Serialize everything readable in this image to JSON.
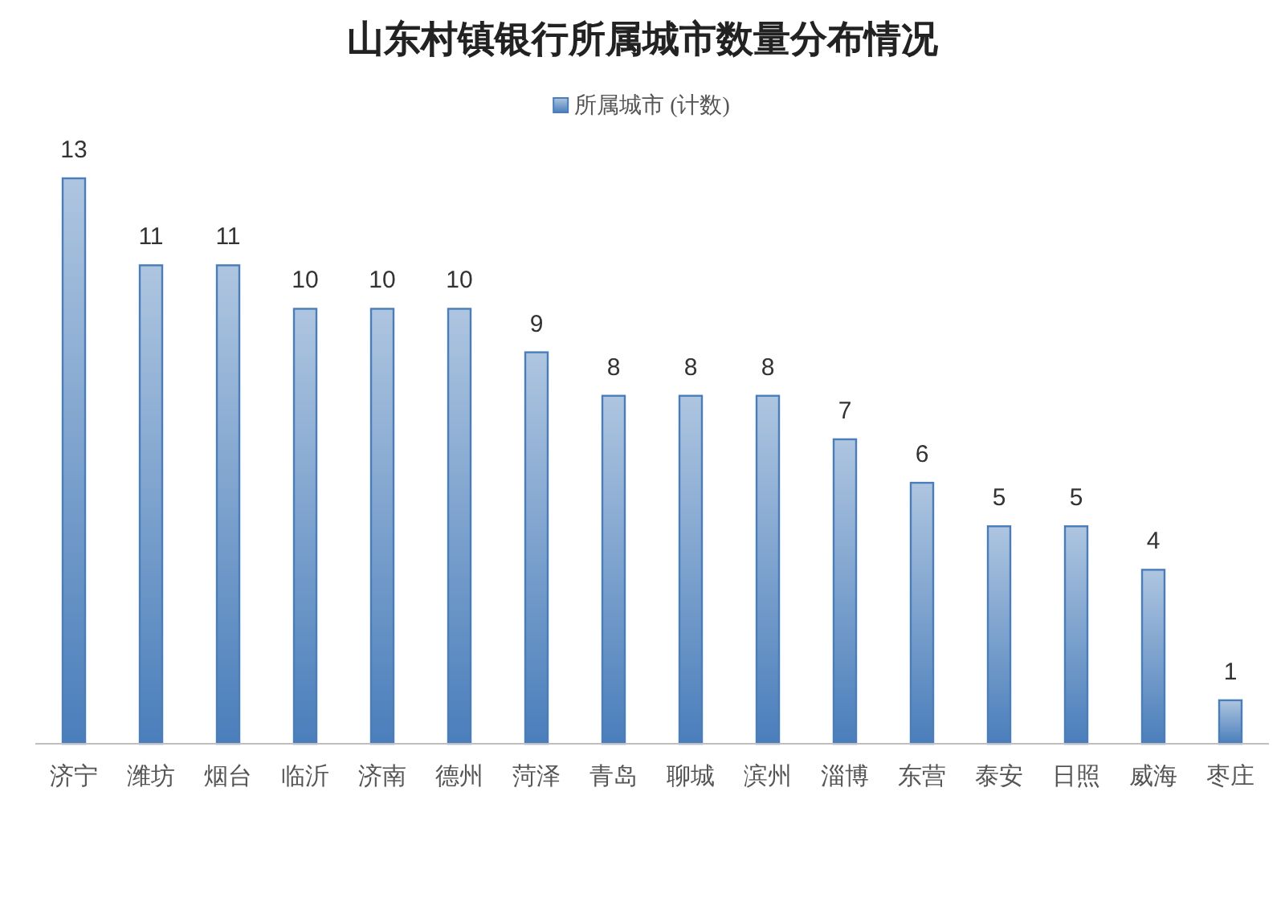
{
  "chart_data": {
    "type": "bar",
    "title": "山东村镇银行所属城市数量分布情况",
    "categories": [
      "济宁",
      "潍坊",
      "烟台",
      "临沂",
      "济南",
      "德州",
      "菏泽",
      "青岛",
      "聊城",
      "滨州",
      "淄博",
      "东营",
      "泰安",
      "日照",
      "威海",
      "枣庄"
    ],
    "series": [
      {
        "name": "所属城市 (计数)",
        "color": "#4a7ebb",
        "values": [
          13,
          11,
          11,
          10,
          10,
          10,
          9,
          8,
          8,
          8,
          7,
          6,
          5,
          5,
          4,
          1
        ]
      }
    ],
    "data_labels": true,
    "legend": "top"
  }
}
